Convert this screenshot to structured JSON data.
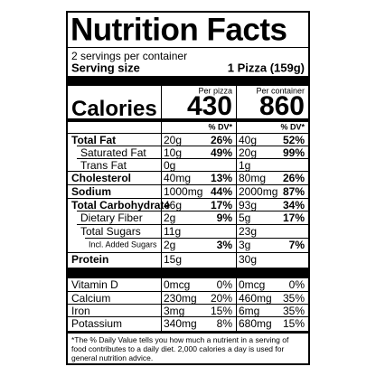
{
  "title": "Nutrition Facts",
  "servings": "2 servings per container",
  "serving_size": {
    "label": "Serving size",
    "value": "1 Pizza (159g)"
  },
  "columns": [
    "Per pizza",
    "Per container"
  ],
  "calories": {
    "label": "Calories",
    "values": [
      430,
      860
    ]
  },
  "dv_header": [
    "% DV*",
    "% DV*"
  ],
  "rows": [
    {
      "label": "Total Fat",
      "cells": [
        [
          "20g",
          "26%"
        ],
        [
          "40g",
          "52%"
        ]
      ]
    },
    {
      "label": "Saturated Fat",
      "cells": [
        [
          "10g",
          "49%"
        ],
        [
          "20g",
          "99%"
        ]
      ]
    },
    {
      "label": "Trans Fat",
      "cells": [
        [
          "0g"
        ],
        [
          "1g"
        ]
      ]
    },
    {
      "label": "Cholesterol",
      "cells": [
        [
          "40mg",
          "13%"
        ],
        [
          "80mg",
          "26%"
        ]
      ]
    },
    {
      "label": "Sodium",
      "cells": [
        [
          "1000mg",
          "44%"
        ],
        [
          "2000mg",
          "87%"
        ]
      ]
    },
    {
      "label": "Total Carbohydrate",
      "cells": [
        [
          "46g",
          "17%"
        ],
        [
          "93g",
          "34%"
        ]
      ]
    },
    {
      "label": "Dietary Fiber",
      "cells": [
        [
          "2g",
          "9%"
        ],
        [
          "5g",
          "17%"
        ]
      ]
    },
    {
      "label": "Total Sugars",
      "cells": [
        [
          "11g"
        ],
        [
          "23g"
        ]
      ]
    },
    {
      "label": "Incl. Added Sugars",
      "cells": [
        [
          "2g",
          "3%"
        ],
        [
          "3g",
          "7%"
        ]
      ]
    },
    {
      "label": "Protein",
      "cells": [
        [
          "15g"
        ],
        [
          "30g"
        ]
      ]
    }
  ],
  "vitamins": [
    {
      "label": "Vitamin D",
      "cells": [
        [
          "0mcg",
          "0%"
        ],
        [
          "0mcg",
          "0%"
        ]
      ]
    },
    {
      "label": "Calcium",
      "cells": [
        [
          "230mg",
          "20%"
        ],
        [
          "460mg",
          "35%"
        ]
      ]
    },
    {
      "label": "Iron",
      "cells": [
        [
          "3mg",
          "15%"
        ],
        [
          "6mg",
          "35%"
        ]
      ]
    },
    {
      "label": "Potassium",
      "cells": [
        [
          "340mg",
          "8%"
        ],
        [
          "680mg",
          "15%"
        ]
      ]
    }
  ],
  "footnote": "*The % Daily Value tells you how much a nutrient in a serving of food contributes to a daily diet. 2,000 calories a day is used for general nutrition advice."
}
